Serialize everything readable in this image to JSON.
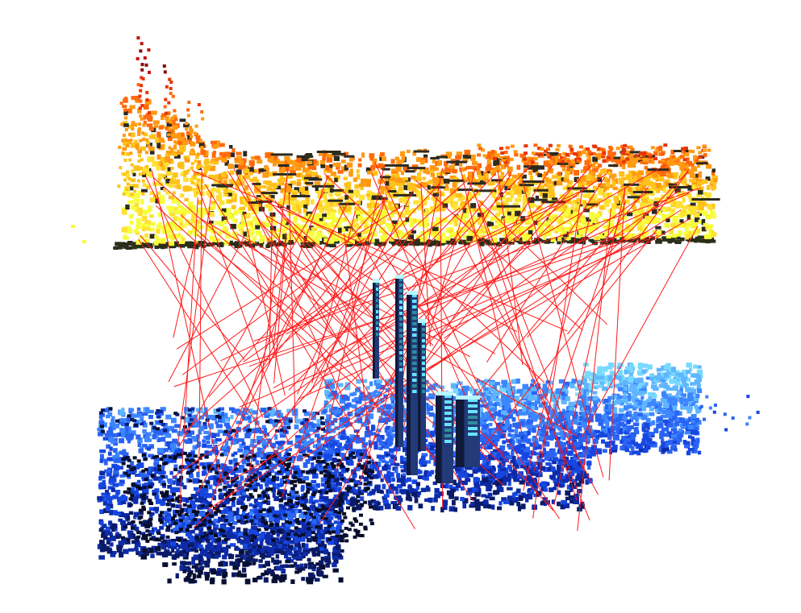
{
  "scene": {
    "background_color": "#ffffff",
    "upper_cloud": {
      "palette": [
        "#f6ff3a",
        "#ffe033",
        "#ffc21a",
        "#ff9a12",
        "#ff6a0a",
        "#e8340a",
        "#c4120a",
        "#8a0a0a",
        "#2d2a1e"
      ],
      "floor_color": "#2b2e1a"
    },
    "lower_cloud": {
      "palette": [
        "#071033",
        "#0a1a66",
        "#0d2aa8",
        "#1646e0",
        "#2a64f2",
        "#3c86ff",
        "#5fb6ff",
        "#77d9ff"
      ],
      "shadow_color": "#070a20"
    },
    "tower_colors": [
      "#0f1a3a",
      "#223a77",
      "#2f8d9f",
      "#67e3ff",
      "#b8f5ff"
    ],
    "correspondence_color": "#ff1a1a"
  }
}
